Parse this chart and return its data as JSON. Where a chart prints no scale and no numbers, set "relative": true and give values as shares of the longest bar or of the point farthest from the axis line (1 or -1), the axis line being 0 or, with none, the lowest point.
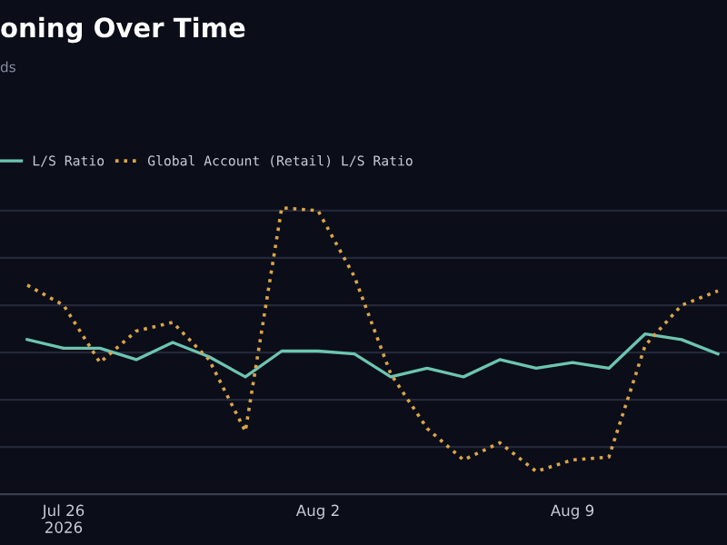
{
  "chart_data": {
    "type": "line",
    "title": "oning Over Time",
    "subtitle": "ds",
    "relative": true,
    "x": [
      "2026-07-25",
      "2026-07-26",
      "2026-07-27",
      "2026-07-28",
      "2026-07-29",
      "2026-07-30",
      "2026-07-31",
      "2026-08-01",
      "2026-08-02",
      "2026-08-03",
      "2026-08-04",
      "2026-08-05",
      "2026-08-06",
      "2026-08-07",
      "2026-08-08",
      "2026-08-09",
      "2026-08-10",
      "2026-08-11",
      "2026-08-12",
      "2026-08-13"
    ],
    "xlim": [
      "2026-07-24T06:00",
      "2026-08-13T06:00"
    ],
    "xticks": [
      {
        "value": "2026-07-26",
        "label": "Jul 26\n2026"
      },
      {
        "value": "2026-08-02",
        "label": "Aug 2"
      },
      {
        "value": "2026-08-09",
        "label": "Aug 9"
      }
    ],
    "series": [
      {
        "name": "L/S Ratio",
        "color": "#6cc5b0",
        "line_style": "solid",
        "values": [
          0.54,
          0.51,
          0.51,
          0.47,
          0.53,
          0.48,
          0.41,
          0.5,
          0.5,
          0.49,
          0.41,
          0.44,
          0.41,
          0.47,
          0.44,
          0.46,
          0.44,
          0.56,
          0.54,
          0.49
        ]
      },
      {
        "name": "Global Account (Retail) L/S Ratio",
        "color": "#d9a54a",
        "line_style": "dotted",
        "values": [
          0.73,
          0.66,
          0.46,
          0.57,
          0.6,
          0.47,
          0.22,
          1.0,
          0.99,
          0.76,
          0.42,
          0.23,
          0.12,
          0.18,
          0.08,
          0.12,
          0.13,
          0.52,
          0.66,
          0.71
        ]
      }
    ],
    "grid": "y",
    "legend": "top left"
  }
}
